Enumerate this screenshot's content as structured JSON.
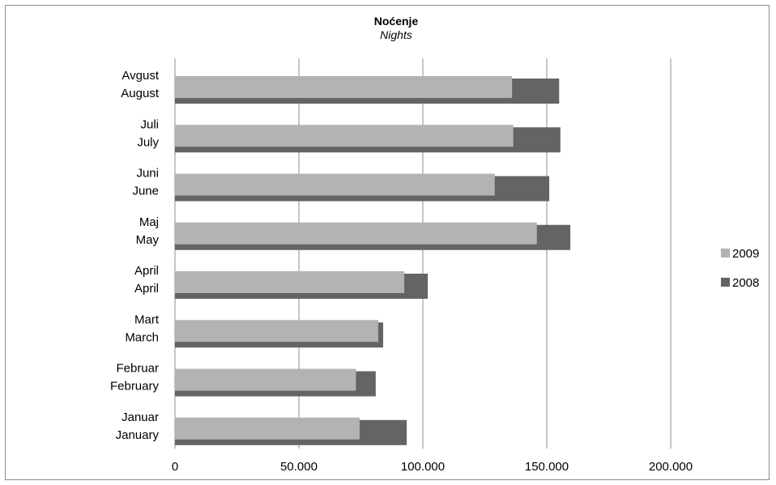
{
  "chart_data": {
    "type": "bar",
    "orientation": "horizontal",
    "title": "Noćenje",
    "subtitle": "Nights",
    "categories": [
      [
        "Januar",
        "January"
      ],
      [
        "Februar",
        "February"
      ],
      [
        "Mart",
        "March"
      ],
      [
        "April",
        "April"
      ],
      [
        "Maj",
        "May"
      ],
      [
        "Juni",
        "June"
      ],
      [
        "Juli",
        "July"
      ],
      [
        "Avgust",
        "August"
      ]
    ],
    "series": [
      {
        "name": "2009",
        "color": "#b3b3b3",
        "values": [
          74500,
          73000,
          82000,
          92500,
          146000,
          129000,
          136500,
          136000
        ]
      },
      {
        "name": "2008",
        "color": "#646464",
        "values": [
          93500,
          81000,
          84000,
          102000,
          159500,
          151000,
          155500,
          155000
        ]
      }
    ],
    "xlim": [
      0,
      200000
    ],
    "xticks": [
      0,
      50000,
      100000,
      150000,
      200000
    ],
    "xtick_labels": [
      "0",
      "50.000",
      "100.000",
      "150.000",
      "200.000"
    ],
    "grid": true,
    "legend_position": "right"
  }
}
